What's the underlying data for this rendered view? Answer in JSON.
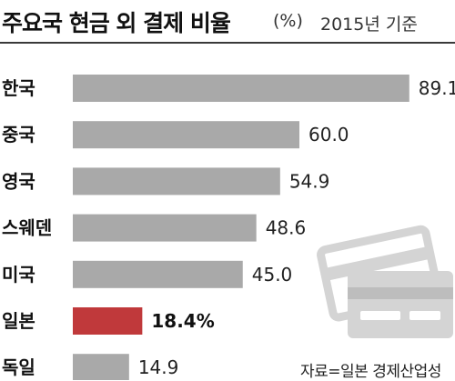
{
  "title": {
    "main": "주요국 현금 외 결제 비율",
    "unit": "(%)",
    "year": "2015년 기준"
  },
  "source": "자료=일본 경제산업성",
  "colors": {
    "bar": "#a9a9a9",
    "highlight": "#c0393b",
    "card": "#d4d4d4"
  },
  "decoration": "credit-card-icons",
  "chart_data": {
    "type": "bar",
    "orientation": "horizontal",
    "title": "주요국 현금 외 결제 비율",
    "unit": "%",
    "categories": [
      "한국",
      "중국",
      "영국",
      "스웨덴",
      "미국",
      "일본",
      "독일"
    ],
    "values": [
      89.1,
      60.0,
      54.9,
      48.6,
      45.0,
      18.4,
      14.9
    ],
    "value_labels": [
      "89.1",
      "60.0",
      "54.9",
      "48.6",
      "45.0",
      "18.4%",
      "14.9"
    ],
    "highlight_category": "일본",
    "xlim": [
      0,
      100
    ],
    "grid": false,
    "legend": "none"
  }
}
